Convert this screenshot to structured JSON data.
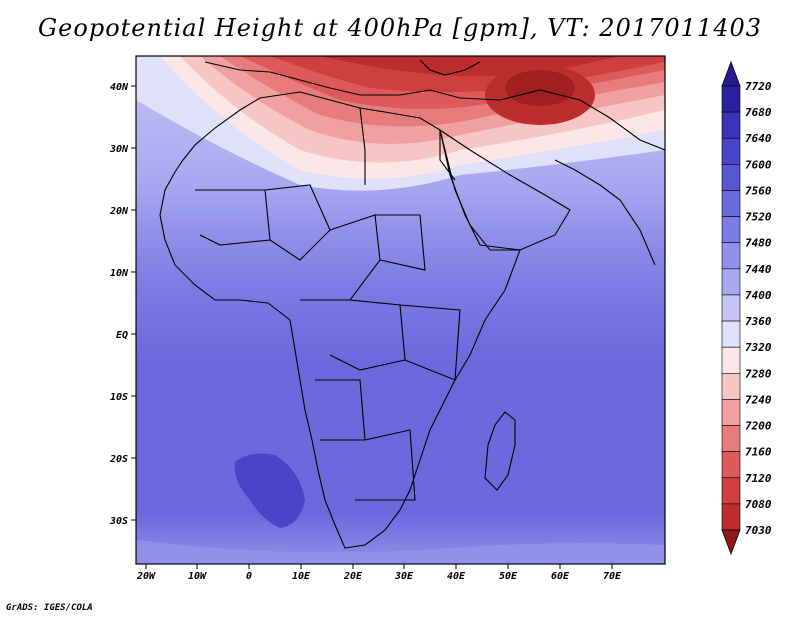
{
  "title": "Geopotential Height at 400hPa [gpm], VT: 2017011403",
  "footer": "GrADS: IGES/COLA",
  "map": {
    "lon_ticks": [
      "20W",
      "10W",
      "0",
      "10E",
      "20E",
      "30E",
      "40E",
      "50E",
      "60E",
      "70E"
    ],
    "lat_ticks": [
      "40N",
      "30N",
      "20N",
      "10N",
      "EQ",
      "10S",
      "20S",
      "30S"
    ]
  },
  "colorbar": {
    "levels": [
      "7720",
      "7680",
      "7640",
      "7600",
      "7560",
      "7520",
      "7480",
      "7440",
      "7400",
      "7360",
      "7320",
      "7280",
      "7240",
      "7200",
      "7160",
      "7120",
      "7080",
      "7030"
    ],
    "colors": [
      "#2a1f9e",
      "#3a32b8",
      "#4a44c8",
      "#5a56d2",
      "#6b69dc",
      "#7d7ce4",
      "#9190ea",
      "#a8a8f0",
      "#c4c4f5",
      "#e0e0f9",
      "#fbe7e7",
      "#f6c5c5",
      "#f0a0a0",
      "#e87c7c",
      "#dd5a5a",
      "#cf3f3f",
      "#bc2d2d",
      "#a21f1f"
    ],
    "top_arrow_color": "#251a90",
    "bottom_arrow_color": "#8f1818"
  }
}
